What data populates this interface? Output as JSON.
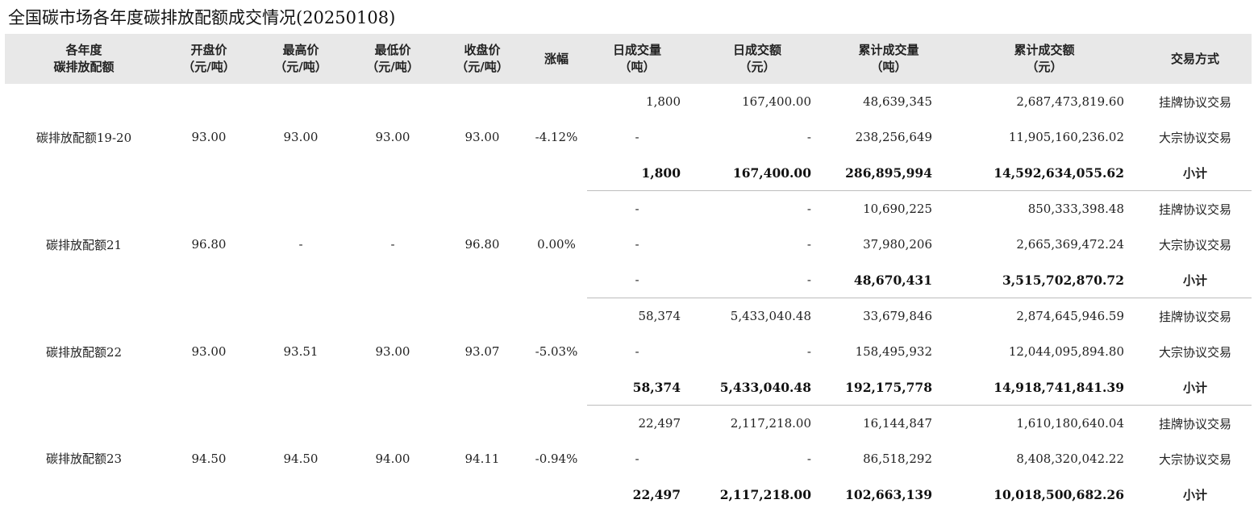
{
  "title": "全国碳市场各年度碳排放配额成交情况(20250108)",
  "headers": {
    "name": [
      "各年度",
      "碳排放配额"
    ],
    "open": [
      "开盘价",
      "（元/吨）"
    ],
    "high": [
      "最高价",
      "（元/吨）"
    ],
    "low": [
      "最低价",
      "（元/吨）"
    ],
    "close": [
      "收盘价",
      "（元/吨）"
    ],
    "change": [
      "涨幅"
    ],
    "daily_volume": [
      "日成交量",
      "（吨）"
    ],
    "daily_amount": [
      "日成交额",
      "（元）"
    ],
    "cum_volume": [
      "累计成交量",
      "（吨）"
    ],
    "cum_amount": [
      "累计成交额",
      "（元）"
    ],
    "method": [
      "交易方式"
    ]
  },
  "groups": [
    {
      "name": "碳排放配额19-20",
      "open": "93.00",
      "high": "93.00",
      "low": "93.00",
      "close": "93.00",
      "change": "-4.12%",
      "rows": [
        {
          "daily_volume": "1,800",
          "daily_amount": "167,400.00",
          "cum_volume": "48,639,345",
          "cum_amount": "2,687,473,819.60",
          "method": "挂牌协议交易"
        },
        {
          "daily_volume": "-",
          "daily_amount": "-",
          "cum_volume": "238,256,649",
          "cum_amount": "11,905,160,236.02",
          "method": "大宗协议交易"
        },
        {
          "daily_volume": "1,800",
          "daily_amount": "167,400.00",
          "cum_volume": "286,895,994",
          "cum_amount": "14,592,634,055.62",
          "method": "小计"
        }
      ]
    },
    {
      "name": "碳排放配额21",
      "open": "96.80",
      "high": "-",
      "low": "-",
      "close": "96.80",
      "change": "0.00%",
      "rows": [
        {
          "daily_volume": "-",
          "daily_amount": "-",
          "cum_volume": "10,690,225",
          "cum_amount": "850,333,398.48",
          "method": "挂牌协议交易"
        },
        {
          "daily_volume": "-",
          "daily_amount": "-",
          "cum_volume": "37,980,206",
          "cum_amount": "2,665,369,472.24",
          "method": "大宗协议交易"
        },
        {
          "daily_volume": "-",
          "daily_amount": "-",
          "cum_volume": "48,670,431",
          "cum_amount": "3,515,702,870.72",
          "method": "小计"
        }
      ]
    },
    {
      "name": "碳排放配额22",
      "open": "93.00",
      "high": "93.51",
      "low": "93.00",
      "close": "93.07",
      "change": "-5.03%",
      "rows": [
        {
          "daily_volume": "58,374",
          "daily_amount": "5,433,040.48",
          "cum_volume": "33,679,846",
          "cum_amount": "2,874,645,946.59",
          "method": "挂牌协议交易"
        },
        {
          "daily_volume": "-",
          "daily_amount": "-",
          "cum_volume": "158,495,932",
          "cum_amount": "12,044,095,894.80",
          "method": "大宗协议交易"
        },
        {
          "daily_volume": "58,374",
          "daily_amount": "5,433,040.48",
          "cum_volume": "192,175,778",
          "cum_amount": "14,918,741,841.39",
          "method": "小计"
        }
      ]
    },
    {
      "name": "碳排放配额23",
      "open": "94.50",
      "high": "94.50",
      "low": "94.00",
      "close": "94.11",
      "change": "-0.94%",
      "rows": [
        {
          "daily_volume": "22,497",
          "daily_amount": "2,117,218.00",
          "cum_volume": "16,144,847",
          "cum_amount": "1,610,180,640.04",
          "method": "挂牌协议交易"
        },
        {
          "daily_volume": "-",
          "daily_amount": "-",
          "cum_volume": "86,518,292",
          "cum_amount": "8,408,320,042.22",
          "method": "大宗协议交易"
        },
        {
          "daily_volume": "22,497",
          "daily_amount": "2,117,218.00",
          "cum_volume": "102,663,139",
          "cum_amount": "10,018,500,682.26",
          "method": "小计"
        }
      ]
    }
  ]
}
